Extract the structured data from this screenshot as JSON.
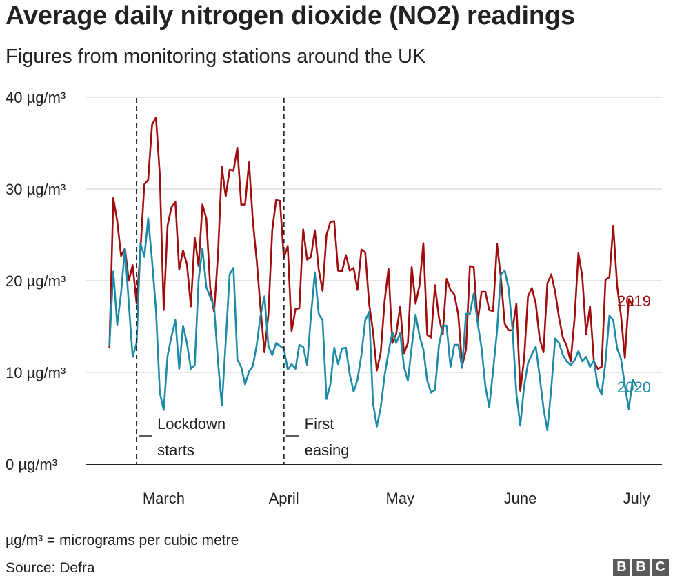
{
  "title": "Average daily nitrogen dioxide (NO2) readings",
  "subtitle": "Figures from monitoring stations around the UK",
  "footnote": "µg/m³ = micrograms per cubic metre",
  "source": "Source: Defra",
  "logo": {
    "letters": [
      "B",
      "B",
      "C"
    ]
  },
  "colors": {
    "series_2019": "#a10c0c",
    "series_2020": "#1c8aa6",
    "grid": "#cccccc",
    "axis": "#222222",
    "text": "#222222"
  },
  "chart_data": {
    "type": "line",
    "title": "Average daily nitrogen dioxide (NO2) readings",
    "xlabel": "",
    "ylabel": "",
    "ylim": [
      0,
      40
    ],
    "yticks": [
      0,
      10,
      20,
      30,
      40
    ],
    "ytick_labels": [
      "0 µg/m³",
      "10 µg/m³",
      "20 µg/m³",
      "30 µg/m³",
      "40 µg/m³"
    ],
    "x_start_day": 1,
    "x_range_days": [
      -5,
      132
    ],
    "month_labels": [
      {
        "label": "March",
        "day": 0
      },
      {
        "label": "April",
        "day": 31
      },
      {
        "label": "May",
        "day": 61
      },
      {
        "label": "June",
        "day": 92
      },
      {
        "label": "July",
        "day": 122
      }
    ],
    "annotations": [
      {
        "day": 8,
        "lines": [
          "Lockdown",
          "starts"
        ]
      },
      {
        "day": 46,
        "lines": [
          "First",
          "easing"
        ]
      }
    ],
    "series": [
      {
        "name": "2019",
        "values": [
          12.7,
          29,
          26.5,
          22.7,
          23.5,
          20,
          21.7,
          17.5,
          23.3,
          30.5,
          31,
          37,
          37.8,
          31.5,
          16.8,
          26,
          28,
          28.6,
          21.2,
          23.3,
          21.8,
          17.2,
          24.7,
          21.6,
          28.3,
          26.8,
          19.2,
          16.6,
          22.8,
          32.4,
          29.2,
          32.1,
          32,
          34.5,
          28.3,
          28.3,
          32.9,
          26.5,
          22.2,
          16.9,
          12.2,
          16.3,
          25.5,
          28.8,
          28.7,
          22.5,
          23.8,
          14.5,
          16.9,
          17,
          25.6,
          22.3,
          22.6,
          25.5,
          21.2,
          18.9,
          25,
          26.4,
          26.5,
          21.1,
          21,
          22.8,
          21.1,
          21.4,
          19,
          23.4,
          23.1,
          17.5,
          14.5,
          10.2,
          12.2,
          17.8,
          21.3,
          13.2,
          14.2,
          17.2,
          12.1,
          13.2,
          21.5,
          17.5,
          19.5,
          24.1,
          14.1,
          13.8,
          19.5,
          16,
          14.2,
          20.2,
          19,
          18.5,
          16.3,
          10.7,
          12.5,
          21.6,
          21.5,
          15.5,
          18.8,
          18.8,
          16.8,
          16.7,
          24,
          20.3,
          15.3,
          14.6,
          14.6,
          17.5,
          8,
          11.5,
          18.3,
          19.2,
          17.5,
          13.7,
          12.2,
          19.7,
          20.7,
          18.8,
          16,
          13.8,
          12.9,
          11.2,
          15.8,
          23,
          20.5,
          14.2,
          17.2,
          11.2,
          10.4,
          10.6,
          20.1,
          20.4,
          26,
          19.4,
          16.2,
          11.6,
          18,
          17.3
        ]
      },
      {
        "name": "2020",
        "values": [
          13,
          21,
          15.2,
          18.7,
          23.5,
          17.5,
          11.7,
          13.2,
          24.1,
          22.6,
          26.8,
          22.2,
          16.8,
          7.8,
          5.9,
          11.8,
          13.9,
          15.7,
          10.4,
          15.1,
          13.2,
          10.4,
          10.8,
          20.1,
          23.5,
          19.3,
          18.2,
          17.2,
          11.2,
          6.4,
          13.3,
          20.7,
          21.4,
          11.4,
          10.6,
          8.7,
          10.1,
          10.7,
          13,
          16.2,
          18.3,
          12.9,
          11.9,
          13.2,
          12.9,
          12.6,
          10.3,
          10.9,
          10.4,
          13,
          12.8,
          10.8,
          16.2,
          20.9,
          16.4,
          15.7,
          7.1,
          8.7,
          12.7,
          10.9,
          12.6,
          12.7,
          9.8,
          7.9,
          9.2,
          11.9,
          15.7,
          16.6,
          6.7,
          4.1,
          6.2,
          9.7,
          12.2,
          14.4,
          13.2,
          14.3,
          10.6,
          9.1,
          12.8,
          16.3,
          14,
          12.5,
          9.1,
          7.8,
          8.1,
          12.9,
          15.1,
          15.1,
          10.6,
          13,
          13,
          10.5,
          16.4,
          16.4,
          18.6,
          15.4,
          12.7,
          8.5,
          6.2,
          10.2,
          14.5,
          20.7,
          21.1,
          19.2,
          14.8,
          7.7,
          4.2,
          8.5,
          11,
          12,
          12.8,
          9.6,
          6.1,
          3.7,
          8.3,
          13.7,
          13.2,
          11.9,
          11.2,
          10.8,
          11.3,
          12.3,
          11.2,
          11.7,
          10.6,
          11.3,
          8.5,
          7.6,
          11.1,
          16.2,
          15.7,
          12.6,
          11.5,
          8.6,
          6,
          9.2,
          8.5
        ]
      }
    ]
  }
}
